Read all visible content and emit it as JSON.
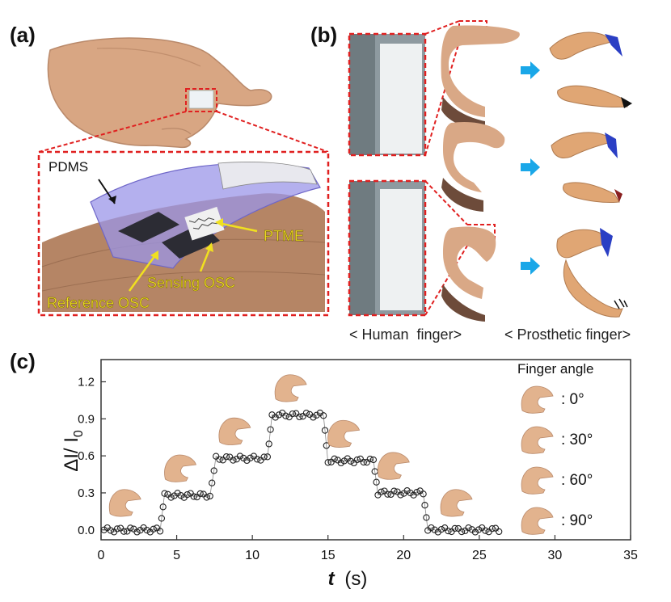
{
  "panels": {
    "a": {
      "label": "(a)",
      "callouts": {
        "pdms": "PDMS",
        "ptme": "PTME",
        "sensing_osc": "Sensing OSC",
        "reference_osc": "Reference OSC"
      }
    },
    "b": {
      "label": "(b)",
      "caption_human": "< Human  finger>",
      "caption_prosthetic": "< Prosthetic finger>"
    },
    "c": {
      "label": "(c)"
    }
  },
  "colors": {
    "callout_dashed_red": "#e02020",
    "callout_yellow": "#f0e020",
    "arrow_blue": "#1aa7e8",
    "skin": "#e2b38e",
    "prosthetic": "#e0a674",
    "prosthetic_tip": "#2b3fc4",
    "data_marker": "#222222"
  },
  "chart_data": {
    "type": "scatter",
    "xlabel_italic": "t",
    "xlabel_unit": "(s)",
    "ylabel": "ΔI/ I",
    "ylabel_sub": "0",
    "xlim": [
      0,
      35
    ],
    "ylim": [
      -0.08,
      1.38
    ],
    "xticks": [
      "0",
      "5",
      "10",
      "15",
      "20",
      "25",
      "30",
      "35"
    ],
    "yticks": [
      "0.0",
      "0.3",
      "0.6",
      "0.9",
      "1.2"
    ],
    "legend_title": "Finger angle",
    "legend_items": [
      ": 0°",
      ": 30°",
      ": 60°",
      ": 90°"
    ],
    "steps": [
      {
        "x_start": 0.2,
        "x_end": 3.9,
        "y": 0.0
      },
      {
        "x_start": 4.2,
        "x_end": 7.2,
        "y": 0.28
      },
      {
        "x_start": 7.6,
        "x_end": 11.0,
        "y": 0.58
      },
      {
        "x_start": 11.3,
        "x_end": 14.7,
        "y": 0.93
      },
      {
        "x_start": 15.0,
        "x_end": 18.0,
        "y": 0.56
      },
      {
        "x_start": 18.3,
        "x_end": 21.3,
        "y": 0.3
      },
      {
        "x_start": 21.6,
        "x_end": 26.3,
        "y": 0.0
      }
    ],
    "step_annotation_angles": [
      "0°",
      "30°",
      "60°",
      "90°",
      "60°",
      "30°",
      "0°"
    ]
  }
}
